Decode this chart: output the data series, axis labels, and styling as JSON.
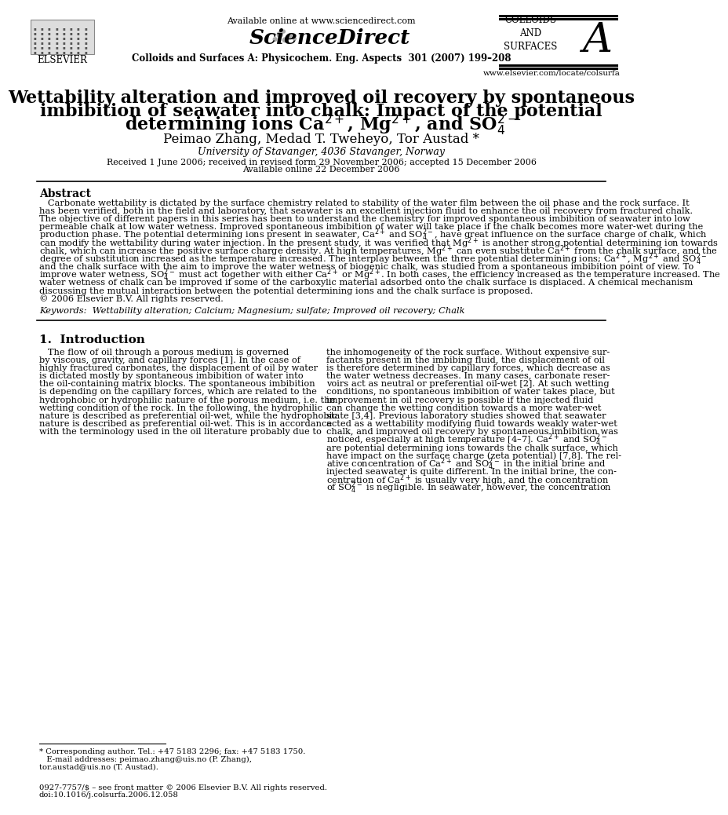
{
  "background_color": "#ffffff",
  "header": {
    "available_online": "Available online at www.sciencedirect.com",
    "journal_info": "Colloids and Surfaces A: Physicochem. Eng. Aspects  301 (2007) 199–208",
    "journal_name": "COLLOIDS\nAND\nSURFACES",
    "journal_letter": "A",
    "website": "www.elsevier.com/locate/colsurfa",
    "elsevier_label": "ELSEVIER"
  },
  "title_line1": "Wettability alteration and improved oil recovery by spontaneous",
  "title_line2": "imbibition of seawater into chalk: Impact of the potential",
  "title_line3": "determining ions Ca$^{2+}$, Mg$^{2+}$, and SO$_4^{2-}$",
  "authors": "Peimao Zhang, Medad T. Tweheyo, Tor Austad *",
  "affiliation": "University of Stavanger, 4036 Stavanger, Norway",
  "received_line1": "Received 1 June 2006; received in revised form 29 November 2006; accepted 15 December 2006",
  "received_line2": "Available online 22 December 2006",
  "abstract_title": "Abstract",
  "abstract_lines": [
    "   Carbonate wettability is dictated by the surface chemistry related to stability of the water film between the oil phase and the rock surface. It",
    "has been verified, both in the field and laboratory, that seawater is an excellent injection fluid to enhance the oil recovery from fractured chalk.",
    "The objective of different papers in this series has been to understand the chemistry for improved spontaneous imbibition of seawater into low",
    "permeable chalk at low water wetness. Improved spontaneous imbibition of water will take place if the chalk becomes more water-wet during the",
    "production phase. The potential determining ions present in seawater, Ca$^{2+}$ and SO$_4^{2-}$, have great influence on the surface charge of chalk, which",
    "can modify the wettability during water injection. In the present study, it was verified that Mg$^{2+}$ is another strong potential determining ion towards",
    "chalk, which can increase the positive surface charge density. At high temperatures, Mg$^{2+}$ can even substitute Ca$^{2+}$ from the chalk surface, and the",
    "degree of substitution increased as the temperature increased. The interplay between the three potential determining ions; Ca$^{2+}$, Mg$^{2+}$ and SO$_4^{2-}$",
    "and the chalk surface with the aim to improve the water wetness of biogenic chalk, was studied from a spontaneous imbibition point of view. To",
    "improve water wetness, SO$_4^{2-}$ must act together with either Ca$^{2+}$ or Mg$^{2+}$. In both cases, the efficiency increased as the temperature increased. The",
    "water wetness of chalk can be improved if some of the carboxylic material adsorbed onto the chalk surface is displaced. A chemical mechanism",
    "discussing the mutual interaction between the potential determining ions and the chalk surface is proposed.",
    "© 2006 Elsevier B.V. All rights reserved."
  ],
  "keywords": "Keywords:  Wettability alteration; Calcium; Magnesium; sulfate; Improved oil recovery; Chalk",
  "section1_title": "1.  Introduction",
  "intro_left_lines": [
    "   The flow of oil through a porous medium is governed",
    "by viscous, gravity, and capillary forces [1]. In the case of",
    "highly fractured carbonates, the displacement of oil by water",
    "is dictated mostly by spontaneous imbibition of water into",
    "the oil-containing matrix blocks. The spontaneous imbibition",
    "is depending on the capillary forces, which are related to the",
    "hydrophobic or hydrophilic nature of the porous medium, i.e. the",
    "wetting condition of the rock. In the following, the hydrophilic",
    "nature is described as preferential oil-wet, while the hydrophobic",
    "nature is described as preferential oil-wet. This is in accordance",
    "with the terminology used in the oil literature probably due to"
  ],
  "intro_right_lines": [
    "the inhomogeneity of the rock surface. Without expensive sur-",
    "factants present in the imbibing fluid, the displacement of oil",
    "is therefore determined by capillary forces, which decrease as",
    "the water wetness decreases. In many cases, carbonate reser-",
    "voirs act as neutral or preferential oil-wet [2]. At such wetting",
    "conditions, no spontaneous imbibition of water takes place, but",
    "improvement in oil recovery is possible if the injected fluid",
    "can change the wetting condition towards a more water-wet",
    "state [3,4]. Previous laboratory studies showed that seawater",
    "acted as a wettability modifying fluid towards weakly water-wet",
    "chalk, and improved oil recovery by spontaneous imbibition was",
    "noticed, especially at high temperature [4–7]. Ca$^{2+}$ and SO$_4^{2-}$",
    "are potential determining ions towards the chalk surface, which",
    "have impact on the surface charge (zeta potential) [7,8]. The rel-",
    "ative concentration of Ca$^{2+}$ and SO$_4^{2-}$ in the initial brine and",
    "injected seawater is quite different. In the initial brine, the con-",
    "centration of Ca$^{2+}$ is usually very high, and the concentration",
    "of SO$_4^{2-}$ is negligible. In seawater, however, the concentration"
  ],
  "footnote_lines": [
    "* Corresponding author. Tel.: +47 5183 2296; fax: +47 5183 1750.",
    "   E-mail addresses: peimao.zhang@uis.no (P. Zhang),",
    "tor.austad@uis.no (T. Austad)."
  ],
  "doi_lines": [
    "0927-7757/$ – see front matter © 2006 Elsevier B.V. All rights reserved.",
    "doi:10.1016/j.colsurfa.2006.12.058"
  ]
}
